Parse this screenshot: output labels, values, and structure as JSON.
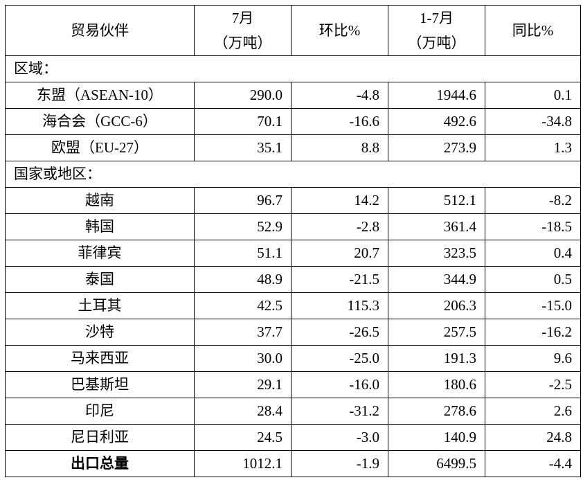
{
  "table": {
    "header": [
      [
        "贸易伙伴"
      ],
      [
        "7月",
        "（万吨）"
      ],
      [
        "环比%"
      ],
      [
        "1-7月",
        "（万吨）"
      ],
      [
        "同比%"
      ]
    ],
    "sections": [
      {
        "title": "区域：",
        "rows": [
          [
            "东盟（ASEAN-10）",
            "290.0",
            "-4.8",
            "1944.6",
            "0.1"
          ],
          [
            "海合会（GCC-6）",
            "70.1",
            "-16.6",
            "492.6",
            "-34.8"
          ],
          [
            "欧盟（EU-27）",
            "35.1",
            "8.8",
            "273.9",
            "1.3"
          ]
        ]
      },
      {
        "title": "国家或地区：",
        "rows": [
          [
            "越南",
            "96.7",
            "14.2",
            "512.1",
            "-8.2"
          ],
          [
            "韩国",
            "52.9",
            "-2.8",
            "361.4",
            "-18.5"
          ],
          [
            "菲律宾",
            "51.1",
            "20.7",
            "323.5",
            "0.4"
          ],
          [
            "泰国",
            "48.9",
            "-21.5",
            "344.9",
            "0.5"
          ],
          [
            "土耳其",
            "42.5",
            "115.3",
            "206.3",
            "-15.0"
          ],
          [
            "沙特",
            "37.7",
            "-26.5",
            "257.5",
            "-16.2"
          ],
          [
            "马来西亚",
            "30.0",
            "-25.0",
            "191.3",
            "9.6"
          ],
          [
            "巴基斯坦",
            "29.1",
            "-16.0",
            "180.6",
            "-2.5"
          ],
          [
            "印尼",
            "28.4",
            "-31.2",
            "278.6",
            "2.6"
          ],
          [
            "尼日利亚",
            "24.5",
            "-3.0",
            "140.9",
            "24.8"
          ]
        ]
      }
    ],
    "total": [
      "出口总量",
      "1012.1",
      "-1.9",
      "6499.5",
      "-4.4"
    ]
  }
}
